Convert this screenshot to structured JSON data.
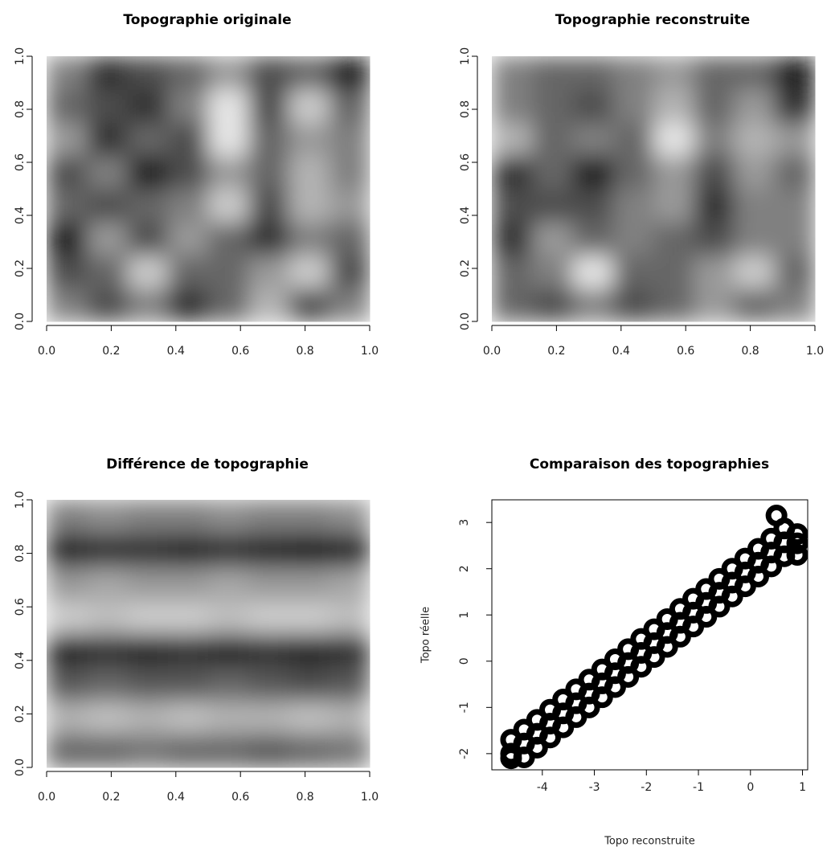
{
  "chart_data": [
    {
      "type": "heatmap",
      "title": "Topographie originale",
      "x": [
        0.0625,
        0.1875,
        0.3125,
        0.4375,
        0.5625,
        0.6875,
        0.8125,
        0.9375
      ],
      "y": [
        0.0625,
        0.1875,
        0.3125,
        0.4375,
        0.5625,
        0.6875,
        0.8125,
        0.9375
      ],
      "z": [
        [
          0.5,
          0.3,
          0.5,
          0.2,
          0.4,
          0.7,
          0.3,
          0.5
        ],
        [
          0.3,
          0.4,
          0.8,
          0.4,
          0.4,
          0.6,
          0.8,
          0.3
        ],
        [
          0.1,
          0.6,
          0.3,
          0.6,
          0.4,
          0.2,
          0.5,
          0.4
        ],
        [
          0.4,
          0.3,
          0.4,
          0.5,
          0.8,
          0.3,
          0.7,
          0.6
        ],
        [
          0.3,
          0.5,
          0.1,
          0.3,
          0.6,
          0.4,
          0.7,
          0.5
        ],
        [
          0.6,
          0.2,
          0.4,
          0.3,
          0.9,
          0.4,
          0.6,
          0.5
        ],
        [
          0.4,
          0.3,
          0.2,
          0.5,
          0.9,
          0.3,
          0.8,
          0.4
        ],
        [
          0.5,
          0.2,
          0.3,
          0.4,
          0.6,
          0.3,
          0.4,
          0.1
        ]
      ],
      "xlim": [
        0,
        1
      ],
      "ylim": [
        0,
        1
      ],
      "xticks": [
        {
          "value": 0,
          "label": "0.0"
        },
        0.2,
        0.4,
        0.6,
        0.8,
        {
          "value": 1,
          "label": "1.0"
        }
      ],
      "yticks": [
        {
          "value": 0,
          "label": "0.0"
        },
        0.2,
        0.4,
        0.6,
        0.8,
        {
          "value": 1,
          "label": "1.0"
        }
      ]
    },
    {
      "type": "heatmap",
      "title": "Topographie reconstruite",
      "x": [
        0.0625,
        0.1875,
        0.3125,
        0.4375,
        0.5625,
        0.6875,
        0.8125,
        0.9375
      ],
      "y": [
        0.0625,
        0.1875,
        0.3125,
        0.4375,
        0.5625,
        0.6875,
        0.8125,
        0.9375
      ],
      "z": [
        [
          0.4,
          0.3,
          0.5,
          0.3,
          0.4,
          0.6,
          0.4,
          0.5
        ],
        [
          0.4,
          0.5,
          0.9,
          0.4,
          0.4,
          0.6,
          0.8,
          0.4
        ],
        [
          0.2,
          0.6,
          0.4,
          0.5,
          0.4,
          0.3,
          0.5,
          0.5
        ],
        [
          0.3,
          0.3,
          0.3,
          0.5,
          0.6,
          0.2,
          0.5,
          0.5
        ],
        [
          0.2,
          0.4,
          0.1,
          0.4,
          0.6,
          0.3,
          0.6,
          0.4
        ],
        [
          0.7,
          0.4,
          0.5,
          0.4,
          0.9,
          0.5,
          0.7,
          0.6
        ],
        [
          0.5,
          0.4,
          0.3,
          0.5,
          0.7,
          0.4,
          0.6,
          0.2
        ],
        [
          0.5,
          0.4,
          0.4,
          0.5,
          0.6,
          0.4,
          0.4,
          0.1
        ]
      ],
      "xlim": [
        0,
        1
      ],
      "ylim": [
        0,
        1
      ],
      "xticks": [
        {
          "value": 0,
          "label": "0.0"
        },
        0.2,
        0.4,
        0.6,
        0.8,
        {
          "value": 1,
          "label": "1.0"
        }
      ],
      "yticks": [
        {
          "value": 0,
          "label": "0.0"
        },
        0.2,
        0.4,
        0.6,
        0.8,
        {
          "value": 1,
          "label": "1.0"
        }
      ]
    },
    {
      "type": "heatmap",
      "title": "Différence de topographie",
      "x": [
        0.0625,
        0.1875,
        0.3125,
        0.4375,
        0.5625,
        0.6875,
        0.8125,
        0.9375
      ],
      "y": [
        0.0625,
        0.1875,
        0.3125,
        0.4375,
        0.5625,
        0.6875,
        0.8125,
        0.9375
      ],
      "z": [
        [
          0.4,
          0.4,
          0.45,
          0.4,
          0.4,
          0.35,
          0.4,
          0.45
        ],
        [
          0.7,
          0.75,
          0.7,
          0.75,
          0.7,
          0.7,
          0.75,
          0.7
        ],
        [
          0.35,
          0.4,
          0.35,
          0.35,
          0.4,
          0.35,
          0.3,
          0.35
        ],
        [
          0.15,
          0.2,
          0.15,
          0.2,
          0.15,
          0.2,
          0.15,
          0.2
        ],
        [
          0.8,
          0.75,
          0.8,
          0.8,
          0.75,
          0.8,
          0.8,
          0.75
        ],
        [
          0.6,
          0.65,
          0.6,
          0.6,
          0.65,
          0.6,
          0.6,
          0.65
        ],
        [
          0.15,
          0.2,
          0.2,
          0.15,
          0.2,
          0.15,
          0.1,
          0.15
        ],
        [
          0.5,
          0.55,
          0.5,
          0.5,
          0.55,
          0.5,
          0.5,
          0.55
        ]
      ],
      "xlim": [
        0,
        1
      ],
      "ylim": [
        0,
        1
      ],
      "xticks": [
        {
          "value": 0,
          "label": "0.0"
        },
        0.2,
        0.4,
        0.6,
        0.8,
        {
          "value": 1,
          "label": "1.0"
        }
      ],
      "yticks": [
        {
          "value": 0,
          "label": "0.0"
        },
        0.2,
        0.4,
        0.6,
        0.8,
        {
          "value": 1,
          "label": "1.0"
        }
      ]
    },
    {
      "type": "scatter",
      "title": "Comparaison des topographies",
      "x_label": "Topo reconstruite",
      "y_label": "Topo réelle",
      "color": "#000000",
      "x": [
        -4.6,
        -4.6,
        -4.6,
        -4.35,
        -4.35,
        -4.35,
        -4.1,
        -4.1,
        -4.1,
        -3.85,
        -3.85,
        -3.85,
        -3.6,
        -3.6,
        -3.6,
        -3.35,
        -3.35,
        -3.35,
        -3.1,
        -3.1,
        -3.1,
        -2.85,
        -2.85,
        -2.85,
        -2.6,
        -2.6,
        -2.6,
        -2.35,
        -2.35,
        -2.35,
        -2.1,
        -2.1,
        -2.1,
        -1.85,
        -1.85,
        -1.85,
        -1.6,
        -1.6,
        -1.6,
        -1.35,
        -1.35,
        -1.35,
        -1.1,
        -1.1,
        -1.1,
        -0.85,
        -0.85,
        -0.85,
        -0.6,
        -0.6,
        -0.6,
        -0.35,
        -0.35,
        -0.35,
        -0.1,
        -0.1,
        -0.1,
        0.15,
        0.15,
        0.15,
        0.4,
        0.4,
        0.4,
        0.65,
        0.65,
        0.65,
        0.9,
        0.9,
        0.9,
        0.5
      ],
      "y": [
        -2.1,
        -2.0,
        -1.7,
        -2.08,
        -1.78,
        -1.48,
        -1.87,
        -1.57,
        -1.27,
        -1.65,
        -1.35,
        -1.05,
        -1.43,
        -1.13,
        -0.83,
        -1.21,
        -0.91,
        -0.61,
        -1.0,
        -0.7,
        -0.4,
        -0.78,
        -0.48,
        -0.18,
        -0.56,
        -0.26,
        0.04,
        -0.34,
        -0.04,
        0.26,
        -0.12,
        0.18,
        0.48,
        0.09,
        0.39,
        0.69,
        0.31,
        0.61,
        0.91,
        0.53,
        0.83,
        1.13,
        0.75,
        1.05,
        1.35,
        0.96,
        1.26,
        1.56,
        1.18,
        1.48,
        1.78,
        1.4,
        1.7,
        2.0,
        1.62,
        1.92,
        2.22,
        1.83,
        2.13,
        2.43,
        2.05,
        2.35,
        2.65,
        2.27,
        2.57,
        2.87,
        2.3,
        2.55,
        2.75,
        3.15
      ],
      "xlim": [
        -4.97,
        1.1
      ],
      "ylim": [
        -2.35,
        3.49
      ],
      "xticks": [
        -4,
        -3,
        -2,
        -1,
        0,
        1
      ],
      "yticks": [
        -2,
        -1,
        0,
        1,
        2,
        3
      ]
    }
  ]
}
